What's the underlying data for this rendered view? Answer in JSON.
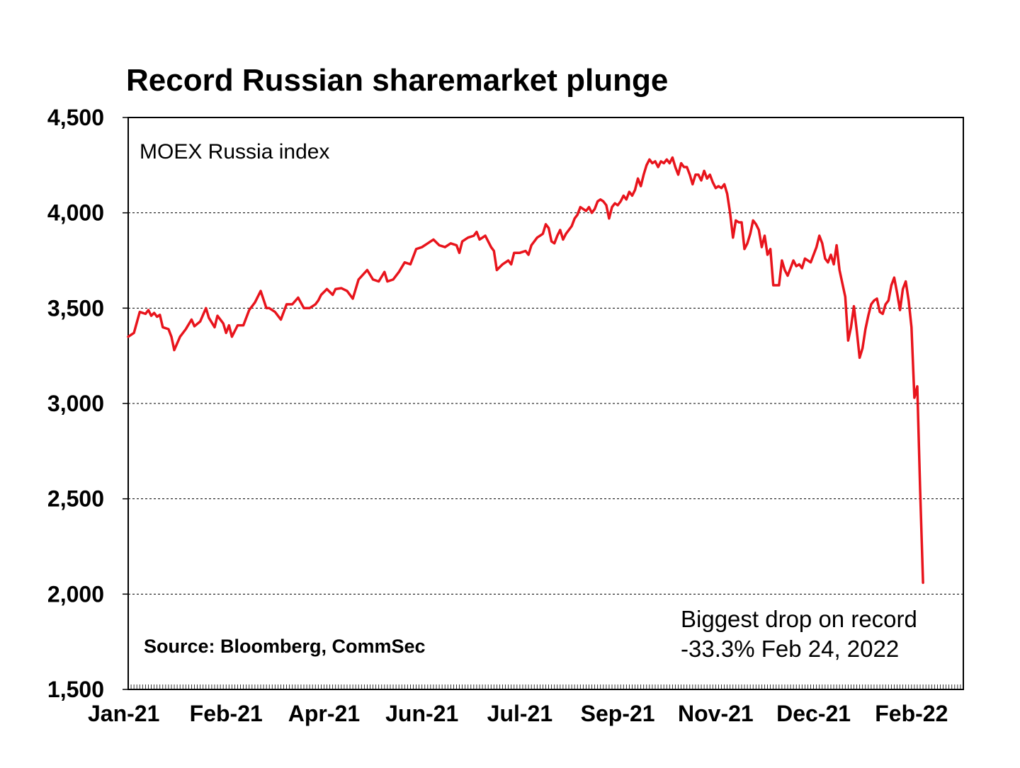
{
  "chart_data": {
    "type": "line",
    "title": "Record Russian sharemarket plunge",
    "series_label": "MOEX Russia index",
    "source": "Source: Bloomberg, CommSec",
    "annotation": {
      "line1": "Biggest drop on record",
      "line2": "-33.3% Feb 24, 2022"
    },
    "xlabel": "",
    "ylabel": "",
    "ylim": [
      1500,
      4500
    ],
    "yticks": [
      1500,
      2000,
      2500,
      3000,
      3500,
      4000,
      4500
    ],
    "ytick_labels": [
      "1,500",
      "2,000",
      "2,500",
      "3,000",
      "3,500",
      "4,000",
      "4,500"
    ],
    "xlim": [
      0,
      290
    ],
    "xticks": [
      {
        "x": 0,
        "label": "Jan-21"
      },
      {
        "x": 34,
        "label": "Feb-21"
      },
      {
        "x": 68,
        "label": "Apr-21"
      },
      {
        "x": 102,
        "label": "Jun-21"
      },
      {
        "x": 136,
        "label": "Jul-21"
      },
      {
        "x": 170,
        "label": "Sep-21"
      },
      {
        "x": 204,
        "label": "Nov-21"
      },
      {
        "x": 238,
        "label": "Dec-21"
      },
      {
        "x": 272,
        "label": "Feb-22"
      }
    ],
    "grid": true,
    "line_color": "#e8141c",
    "series": [
      {
        "name": "MOEX Russia index",
        "points": [
          [
            0,
            3350
          ],
          [
            2,
            3370
          ],
          [
            4,
            3480
          ],
          [
            6,
            3470
          ],
          [
            7,
            3490
          ],
          [
            8,
            3460
          ],
          [
            9,
            3475
          ],
          [
            10,
            3455
          ],
          [
            11,
            3465
          ],
          [
            12,
            3400
          ],
          [
            14,
            3390
          ],
          [
            15,
            3350
          ],
          [
            16,
            3280
          ],
          [
            18,
            3350
          ],
          [
            20,
            3390
          ],
          [
            22,
            3440
          ],
          [
            23,
            3405
          ],
          [
            25,
            3430
          ],
          [
            27,
            3500
          ],
          [
            28,
            3450
          ],
          [
            30,
            3400
          ],
          [
            31,
            3460
          ],
          [
            33,
            3420
          ],
          [
            34,
            3370
          ],
          [
            35,
            3410
          ],
          [
            36,
            3350
          ],
          [
            38,
            3410
          ],
          [
            40,
            3410
          ],
          [
            42,
            3490
          ],
          [
            44,
            3530
          ],
          [
            46,
            3590
          ],
          [
            48,
            3500
          ],
          [
            49,
            3500
          ],
          [
            51,
            3480
          ],
          [
            53,
            3440
          ],
          [
            55,
            3520
          ],
          [
            57,
            3520
          ],
          [
            59,
            3555
          ],
          [
            61,
            3500
          ],
          [
            63,
            3500
          ],
          [
            65,
            3520
          ],
          [
            66,
            3540
          ],
          [
            67,
            3570
          ],
          [
            69,
            3600
          ],
          [
            71,
            3570
          ],
          [
            72,
            3600
          ],
          [
            74,
            3605
          ],
          [
            76,
            3590
          ],
          [
            78,
            3550
          ],
          [
            80,
            3650
          ],
          [
            83,
            3700
          ],
          [
            85,
            3650
          ],
          [
            87,
            3640
          ],
          [
            89,
            3690
          ],
          [
            90,
            3640
          ],
          [
            92,
            3650
          ],
          [
            94,
            3690
          ],
          [
            96,
            3740
          ],
          [
            98,
            3730
          ],
          [
            100,
            3810
          ],
          [
            102,
            3820
          ],
          [
            104,
            3840
          ],
          [
            106,
            3860
          ],
          [
            108,
            3830
          ],
          [
            110,
            3820
          ],
          [
            112,
            3840
          ],
          [
            114,
            3830
          ],
          [
            115,
            3790
          ],
          [
            116,
            3850
          ],
          [
            118,
            3870
          ],
          [
            120,
            3880
          ],
          [
            121,
            3900
          ],
          [
            122,
            3860
          ],
          [
            124,
            3880
          ],
          [
            126,
            3820
          ],
          [
            127,
            3800
          ],
          [
            128,
            3700
          ],
          [
            130,
            3730
          ],
          [
            132,
            3750
          ],
          [
            133,
            3730
          ],
          [
            134,
            3790
          ],
          [
            136,
            3790
          ],
          [
            138,
            3800
          ],
          [
            139,
            3780
          ],
          [
            140,
            3830
          ],
          [
            142,
            3870
          ],
          [
            144,
            3890
          ],
          [
            145,
            3940
          ],
          [
            146,
            3920
          ],
          [
            147,
            3850
          ],
          [
            148,
            3840
          ],
          [
            149,
            3880
          ],
          [
            150,
            3910
          ],
          [
            151,
            3860
          ],
          [
            152,
            3890
          ],
          [
            154,
            3930
          ],
          [
            155,
            3970
          ],
          [
            156,
            3990
          ],
          [
            157,
            4030
          ],
          [
            158,
            4020
          ],
          [
            159,
            4010
          ],
          [
            160,
            4030
          ],
          [
            161,
            4000
          ],
          [
            162,
            4020
          ],
          [
            163,
            4060
          ],
          [
            164,
            4070
          ],
          [
            165,
            4060
          ],
          [
            166,
            4040
          ],
          [
            167,
            3970
          ],
          [
            168,
            4030
          ],
          [
            169,
            4050
          ],
          [
            170,
            4040
          ],
          [
            171,
            4060
          ],
          [
            172,
            4090
          ],
          [
            173,
            4070
          ],
          [
            174,
            4110
          ],
          [
            175,
            4090
          ],
          [
            176,
            4120
          ],
          [
            177,
            4180
          ],
          [
            178,
            4140
          ],
          [
            179,
            4200
          ],
          [
            180,
            4250
          ],
          [
            181,
            4280
          ],
          [
            182,
            4260
          ],
          [
            183,
            4270
          ],
          [
            184,
            4240
          ],
          [
            185,
            4270
          ],
          [
            186,
            4260
          ],
          [
            187,
            4280
          ],
          [
            188,
            4260
          ],
          [
            189,
            4290
          ],
          [
            190,
            4240
          ],
          [
            191,
            4200
          ],
          [
            192,
            4260
          ],
          [
            193,
            4240
          ],
          [
            194,
            4240
          ],
          [
            195,
            4200
          ],
          [
            196,
            4150
          ],
          [
            197,
            4200
          ],
          [
            198,
            4200
          ],
          [
            199,
            4170
          ],
          [
            200,
            4220
          ],
          [
            201,
            4180
          ],
          [
            202,
            4200
          ],
          [
            203,
            4160
          ],
          [
            204,
            4130
          ],
          [
            205,
            4140
          ],
          [
            206,
            4130
          ],
          [
            207,
            4150
          ],
          [
            208,
            4100
          ],
          [
            209,
            4000
          ],
          [
            210,
            3870
          ],
          [
            211,
            3960
          ],
          [
            212,
            3950
          ],
          [
            213,
            3950
          ],
          [
            214,
            3810
          ],
          [
            215,
            3840
          ],
          [
            216,
            3890
          ],
          [
            217,
            3960
          ],
          [
            218,
            3940
          ],
          [
            219,
            3910
          ],
          [
            220,
            3820
          ],
          [
            221,
            3880
          ],
          [
            222,
            3780
          ],
          [
            223,
            3810
          ],
          [
            224,
            3620
          ],
          [
            225,
            3620
          ],
          [
            226,
            3620
          ],
          [
            227,
            3750
          ],
          [
            228,
            3700
          ],
          [
            229,
            3670
          ],
          [
            230,
            3710
          ],
          [
            231,
            3750
          ],
          [
            232,
            3720
          ],
          [
            233,
            3730
          ],
          [
            234,
            3710
          ],
          [
            235,
            3760
          ],
          [
            236,
            3750
          ],
          [
            237,
            3740
          ],
          [
            238,
            3780
          ],
          [
            239,
            3820
          ],
          [
            240,
            3880
          ],
          [
            241,
            3840
          ],
          [
            242,
            3760
          ],
          [
            243,
            3740
          ],
          [
            244,
            3780
          ],
          [
            245,
            3730
          ],
          [
            246,
            3830
          ],
          [
            247,
            3700
          ],
          [
            248,
            3630
          ],
          [
            249,
            3560
          ],
          [
            250,
            3330
          ],
          [
            251,
            3400
          ],
          [
            252,
            3510
          ],
          [
            253,
            3380
          ],
          [
            254,
            3240
          ],
          [
            255,
            3290
          ],
          [
            256,
            3390
          ],
          [
            257,
            3460
          ],
          [
            258,
            3520
          ],
          [
            259,
            3540
          ],
          [
            260,
            3550
          ],
          [
            261,
            3480
          ],
          [
            262,
            3470
          ],
          [
            263,
            3520
          ],
          [
            264,
            3540
          ],
          [
            265,
            3620
          ],
          [
            266,
            3660
          ],
          [
            267,
            3580
          ],
          [
            268,
            3490
          ],
          [
            269,
            3600
          ],
          [
            270,
            3640
          ],
          [
            271,
            3540
          ],
          [
            272,
            3400
          ],
          [
            273,
            3030
          ],
          [
            274,
            3090
          ],
          [
            275,
            2550
          ],
          [
            276,
            2060
          ]
        ]
      }
    ]
  }
}
